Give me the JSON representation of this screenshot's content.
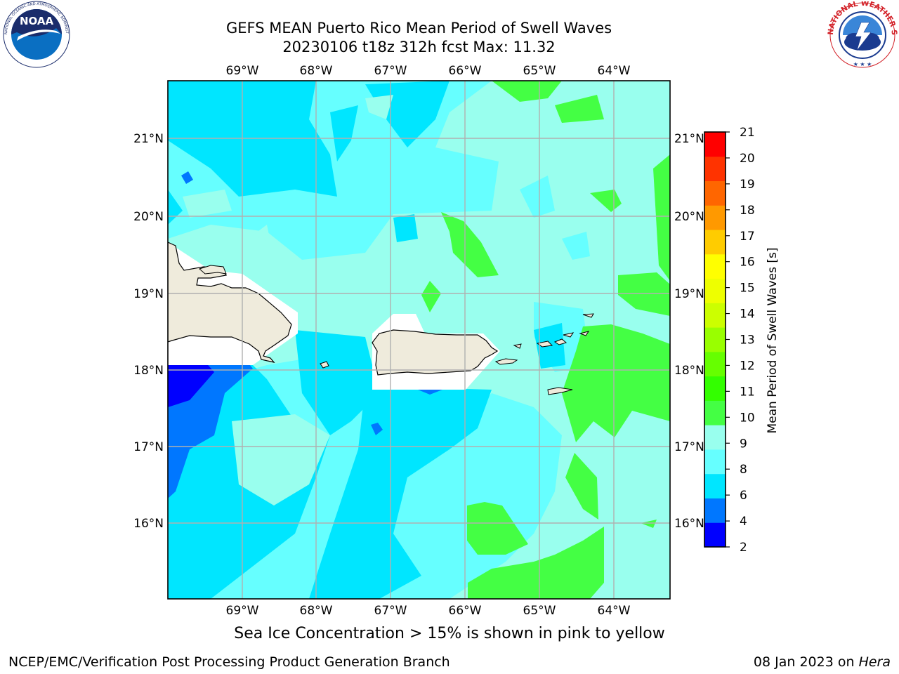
{
  "title": {
    "line1": "GEFS MEAN Puerto Rico Mean Period of Swell Waves",
    "line2": "20230106 t18z 312h fcst   Max: 11.32"
  },
  "map": {
    "lon_labels": [
      "69°W",
      "68°W",
      "67°W",
      "66°W",
      "65°W",
      "64°W"
    ],
    "lat_labels": [
      "21°N",
      "20°N",
      "19°N",
      "18°N",
      "17°N",
      "16°N"
    ]
  },
  "colorbar": {
    "label": "Mean Period of Swell Waves [s]",
    "ticks": [
      "2",
      "4",
      "6",
      "8",
      "9",
      "10",
      "11",
      "12",
      "13",
      "14",
      "15",
      "16",
      "17",
      "18",
      "19",
      "20",
      "21"
    ],
    "colors": [
      "#0000ff",
      "#0077ff",
      "#00e6ff",
      "#66ffff",
      "#99ffee",
      "#44ff44",
      "#33ff00",
      "#66ff00",
      "#99ff00",
      "#ccff00",
      "#eeff00",
      "#ffff00",
      "#ffcc00",
      "#ff9900",
      "#ff6600",
      "#ff3300",
      "#ff0000"
    ]
  },
  "palette": {
    "p9_10": "#99ffee",
    "p8_9": "#66ffff",
    "p6_8": "#00e6ff",
    "p4_6": "#0077ff",
    "p2_4": "#0000ff",
    "p10_11": "#44ff44",
    "land": "#efebdc",
    "grid": "#b0b0b0"
  },
  "caption": "Sea Ice Concentration > 15% is shown in pink to yellow",
  "footer": {
    "left": "NCEP/EMC/Verification Post Processing Product Generation Branch",
    "right_prefix": "08 Jan 2023 on ",
    "right_machine": "Hera"
  },
  "logos": {
    "noaa_text": "NOAA",
    "noaa_ring": "NATIONAL OCEANIC AND ATMOSPHERIC ADMINISTRATION · U.S. DEPARTMENT OF COMMERCE",
    "nws_ring": "NATIONAL WEATHER SERVICE"
  }
}
